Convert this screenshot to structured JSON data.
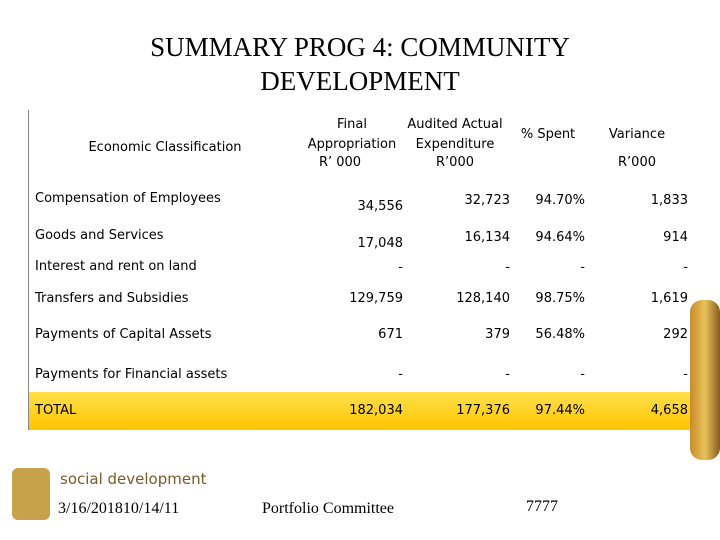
{
  "header": {
    "title": "SUMMARY PROG 4: COMMUNITY DEVELOPMENT"
  },
  "table": {
    "columns": [
      "Economic Classification",
      "Final Appropriation",
      "Audited Actual Expenditure",
      "% Spent",
      "Variance"
    ],
    "units": [
      "R’ 000",
      "R’000",
      "R’000"
    ],
    "rows": [
      [
        "Compensation of Employees",
        "34,556",
        "32,723",
        "94.70%",
        "1,833"
      ],
      [
        "Goods and Services",
        "17,048",
        "16,134",
        "94.64%",
        "914"
      ],
      [
        "Interest and rent on land",
        "-",
        "-",
        "-",
        "-"
      ],
      [
        "Transfers and Subsidies",
        "129,759",
        "128,140",
        "98.75%",
        "1,619"
      ],
      [
        "Payments of Capital Assets",
        "671",
        "379",
        "56.48%",
        "292"
      ],
      [
        "Payments for Financial assets",
        "-",
        "-",
        "-",
        "-"
      ],
      [
        "TOTAL",
        "182,034",
        "177,376",
        "97.44%",
        "4,658"
      ]
    ]
  },
  "footer": {
    "brand": "social development",
    "date": "3/16/201810/14/11",
    "committee": "Portfolio Committee",
    "page": "7777"
  }
}
